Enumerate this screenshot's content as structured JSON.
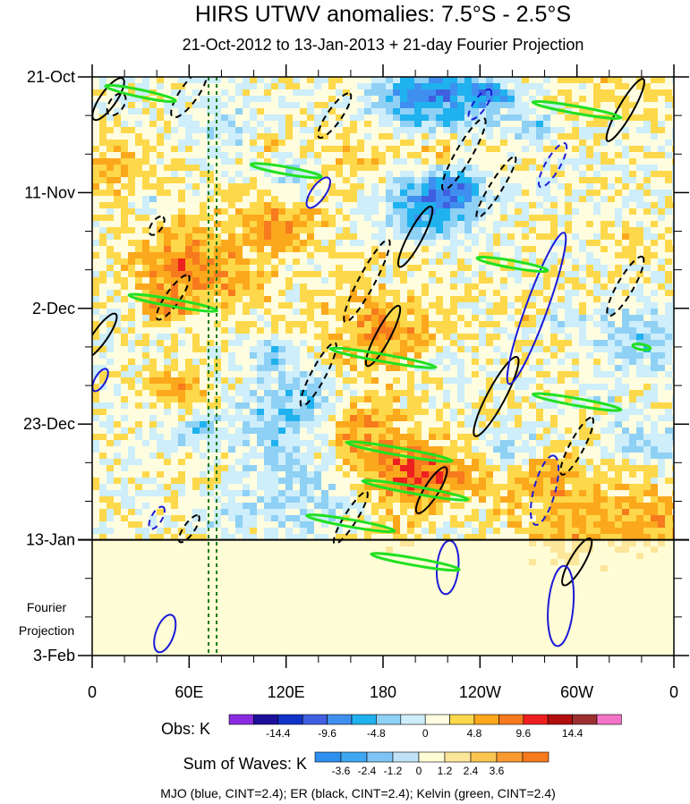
{
  "chart_data": {
    "type": "heatmap",
    "title": "HIRS UTWV anomalies: 7.5°S - 2.5°S",
    "subtitle": "21-Oct-2012 to 13-Jan-2013 + 21-day Fourier Projection",
    "xlabel": "",
    "ylabel": "",
    "x_ticks": [
      "0",
      "60E",
      "120E",
      "180",
      "120W",
      "60W",
      "0"
    ],
    "x_tick_values": [
      0,
      60,
      120,
      180,
      240,
      300,
      360
    ],
    "xlim": [
      0,
      360
    ],
    "y_ticks": [
      "21-Oct",
      "11-Nov",
      "2-Dec",
      "23-Dec",
      "13-Jan",
      "3-Feb"
    ],
    "y_tick_days": [
      0,
      21,
      42,
      63,
      84,
      105
    ],
    "ylim_days": [
      0,
      105
    ],
    "observation_end": "13-Jan",
    "projection_label": "Fourier Projection",
    "highlight_longitudes": [
      72,
      77
    ],
    "obs_colorbar": {
      "label": "Obs: K",
      "colors": [
        "#8a2be2",
        "#1c0f9c",
        "#1033c8",
        "#3f5fe0",
        "#3f8ff0",
        "#1fb2ee",
        "#8fd0f5",
        "#cdeefa",
        "#fffde0",
        "#fdd84a",
        "#fba81c",
        "#f77a1e",
        "#ee1f1f",
        "#b20e0e",
        "#9c3030",
        "#f474c8"
      ],
      "tick_labels": [
        "-14.4",
        "-9.6",
        "-4.8",
        "0",
        "4.8",
        "9.6",
        "14.4"
      ]
    },
    "waves_colorbar": {
      "label": "Sum of Waves: K",
      "colors": [
        "#2f8fef",
        "#3fa8f3",
        "#7fc4f5",
        "#bfe2f7",
        "#fffdd6",
        "#fce69a",
        "#fbc552",
        "#f99a30",
        "#f77a1e"
      ],
      "tick_labels": [
        "-3.6",
        "-2.4",
        "-1.2",
        "0",
        "1.2",
        "2.4",
        "3.6"
      ]
    },
    "series": [
      {
        "name": "MJO",
        "color": "blue",
        "cint": 2.4
      },
      {
        "name": "ER",
        "color": "black",
        "cint": 2.4
      },
      {
        "name": "Kelvin",
        "color": "green",
        "cint": 2.4
      }
    ],
    "footnote": "MJO (blue, CINT=2.4); ER (black, CINT=2.4); Kelvin (green, CINT=2.4)"
  }
}
